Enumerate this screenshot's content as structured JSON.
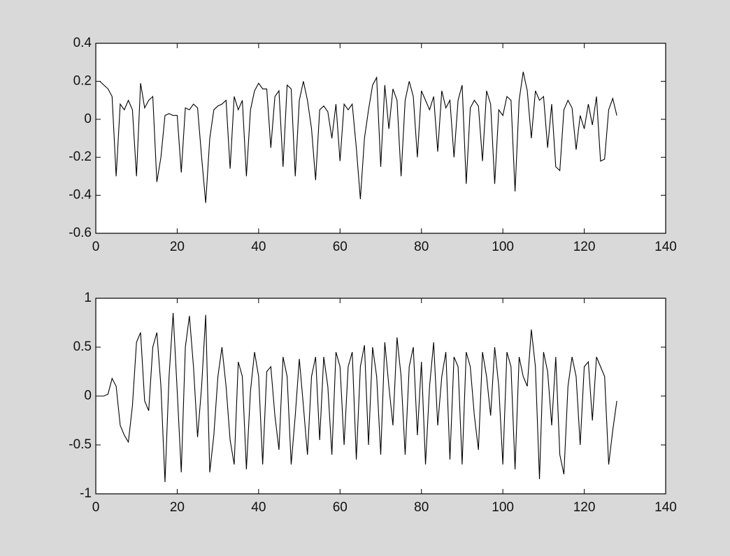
{
  "chart_data": [
    {
      "type": "line",
      "x": [
        1,
        2,
        3,
        4,
        5,
        6,
        7,
        8,
        9,
        10,
        11,
        12,
        13,
        14,
        15,
        16,
        17,
        18,
        19,
        20,
        21,
        22,
        23,
        24,
        25,
        26,
        27,
        28,
        29,
        30,
        31,
        32,
        33,
        34,
        35,
        36,
        37,
        38,
        39,
        40,
        41,
        42,
        43,
        44,
        45,
        46,
        47,
        48,
        49,
        50,
        51,
        52,
        53,
        54,
        55,
        56,
        57,
        58,
        59,
        60,
        61,
        62,
        63,
        64,
        65,
        66,
        67,
        68,
        69,
        70,
        71,
        72,
        73,
        74,
        75,
        76,
        77,
        78,
        79,
        80,
        81,
        82,
        83,
        84,
        85,
        86,
        87,
        88,
        89,
        90,
        91,
        92,
        93,
        94,
        95,
        96,
        97,
        98,
        99,
        100,
        101,
        102,
        103,
        104,
        105,
        106,
        107,
        108,
        109,
        110,
        111,
        112,
        113,
        114,
        115,
        116,
        117,
        118,
        119,
        120,
        121,
        122,
        123,
        124,
        125,
        126,
        127,
        128
      ],
      "values": [
        0.2,
        0.18,
        0.16,
        0.12,
        -0.3,
        0.08,
        0.05,
        0.1,
        0.05,
        -0.3,
        0.19,
        0.06,
        0.1,
        0.12,
        -0.33,
        -0.2,
        0.02,
        0.03,
        0.02,
        0.02,
        -0.28,
        0.06,
        0.05,
        0.08,
        0.06,
        -0.2,
        -0.44,
        -0.1,
        0.05,
        0.07,
        0.08,
        0.1,
        -0.26,
        0.12,
        0.05,
        0.1,
        -0.3,
        0.05,
        0.15,
        0.19,
        0.16,
        0.16,
        -0.15,
        0.12,
        0.15,
        -0.25,
        0.18,
        0.16,
        -0.3,
        0.1,
        0.2,
        0.1,
        -0.05,
        -0.32,
        0.05,
        0.07,
        0.04,
        -0.1,
        0.08,
        -0.22,
        0.08,
        0.05,
        0.08,
        -0.15,
        -0.42,
        -0.1,
        0.05,
        0.18,
        0.22,
        -0.25,
        0.18,
        -0.05,
        0.16,
        0.1,
        -0.3,
        0.1,
        0.2,
        0.12,
        -0.2,
        0.15,
        0.1,
        0.05,
        0.12,
        -0.17,
        0.15,
        0.06,
        0.1,
        -0.2,
        0.1,
        0.18,
        -0.34,
        0.06,
        0.1,
        0.07,
        -0.22,
        0.15,
        0.08,
        -0.34,
        0.05,
        0.02,
        0.12,
        0.1,
        -0.38,
        0.1,
        0.25,
        0.15,
        -0.1,
        0.15,
        0.1,
        0.12,
        -0.15,
        0.08,
        -0.25,
        -0.27,
        0.05,
        0.1,
        0.06,
        -0.16,
        0.02,
        -0.05,
        0.08,
        -0.03,
        0.12,
        -0.22,
        -0.21,
        0.05,
        0.11,
        0.02
      ],
      "color": "#000000",
      "xlim": [
        0,
        140
      ],
      "xticks": [
        0,
        20,
        40,
        60,
        80,
        100,
        120,
        140
      ],
      "ylim": [
        -0.6,
        0.4
      ],
      "yticks": [
        -0.6,
        -0.4,
        -0.2,
        0,
        0.2,
        0.4
      ]
    },
    {
      "type": "line",
      "x": [
        1,
        2,
        3,
        4,
        5,
        6,
        7,
        8,
        9,
        10,
        11,
        12,
        13,
        14,
        15,
        16,
        17,
        18,
        19,
        20,
        21,
        22,
        23,
        24,
        25,
        26,
        27,
        28,
        29,
        30,
        31,
        32,
        33,
        34,
        35,
        36,
        37,
        38,
        39,
        40,
        41,
        42,
        43,
        44,
        45,
        46,
        47,
        48,
        49,
        50,
        51,
        52,
        53,
        54,
        55,
        56,
        57,
        58,
        59,
        60,
        61,
        62,
        63,
        64,
        65,
        66,
        67,
        68,
        69,
        70,
        71,
        72,
        73,
        74,
        75,
        76,
        77,
        78,
        79,
        80,
        81,
        82,
        83,
        84,
        85,
        86,
        87,
        88,
        89,
        90,
        91,
        92,
        93,
        94,
        95,
        96,
        97,
        98,
        99,
        100,
        101,
        102,
        103,
        104,
        105,
        106,
        107,
        108,
        109,
        110,
        111,
        112,
        113,
        114,
        115,
        116,
        117,
        118,
        119,
        120,
        121,
        122,
        123,
        124,
        125,
        126,
        127,
        128
      ],
      "values": [
        0,
        0,
        0.02,
        0.18,
        0.1,
        -0.3,
        -0.4,
        -0.47,
        -0.1,
        0.55,
        0.65,
        -0.05,
        -0.15,
        0.5,
        0.65,
        0.1,
        -0.88,
        0.2,
        0.85,
        0.05,
        -0.78,
        0.5,
        0.82,
        0.3,
        -0.42,
        0.1,
        0.83,
        -0.78,
        -0.4,
        0.2,
        0.5,
        0.1,
        -0.45,
        -0.7,
        0.35,
        0.2,
        -0.75,
        0.05,
        0.45,
        0.2,
        -0.7,
        0.25,
        0.3,
        -0.2,
        -0.55,
        0.4,
        0.2,
        -0.7,
        -0.2,
        0.38,
        -0.1,
        -0.6,
        0.2,
        0.4,
        -0.45,
        0.4,
        0.1,
        -0.6,
        0.45,
        0.3,
        -0.5,
        0.3,
        0.45,
        -0.65,
        0.3,
        0.52,
        -0.5,
        0.5,
        0.2,
        -0.6,
        0.55,
        0.1,
        -0.3,
        0.6,
        0.2,
        -0.6,
        0.3,
        0.5,
        -0.4,
        0.35,
        -0.7,
        0.1,
        0.55,
        -0.3,
        0.2,
        0.45,
        -0.65,
        0.4,
        0.3,
        -0.7,
        0.45,
        0.3,
        -0.2,
        -0.55,
        0.45,
        0.2,
        -0.2,
        0.5,
        0.1,
        -0.7,
        0.45,
        0.3,
        -0.75,
        0.4,
        0.2,
        0.1,
        0.68,
        0.3,
        -0.85,
        0.45,
        0.25,
        -0.3,
        0.4,
        -0.6,
        -0.8,
        0.1,
        0.4,
        0.2,
        -0.5,
        0.3,
        0.35,
        -0.25,
        0.4,
        0.3,
        0.2,
        -0.7,
        -0.35,
        -0.05
      ],
      "color": "#000000",
      "xlim": [
        0,
        140
      ],
      "xticks": [
        0,
        20,
        40,
        60,
        80,
        100,
        120,
        140
      ],
      "ylim": [
        -1,
        1
      ],
      "yticks": [
        -1,
        -0.5,
        0,
        0.5,
        1
      ]
    }
  ]
}
